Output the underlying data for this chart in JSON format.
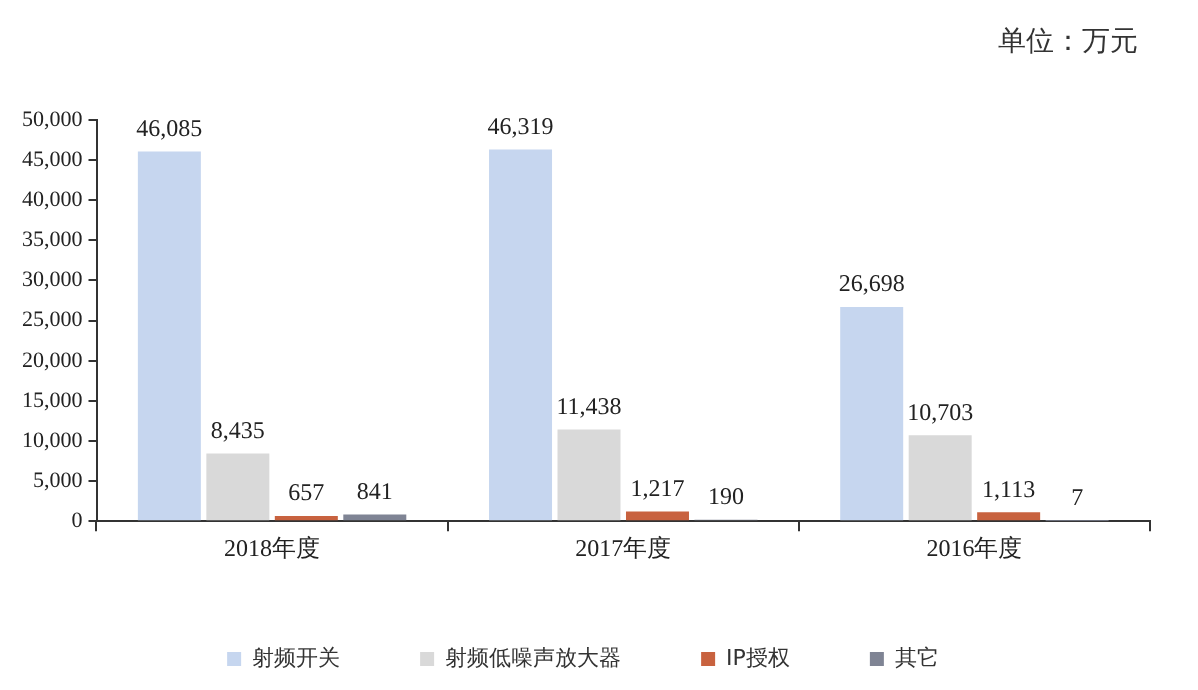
{
  "chart_data": {
    "type": "bar",
    "categories": [
      "2018年度",
      "2017年度",
      "2016年度"
    ],
    "series": [
      {
        "name": "射频开关",
        "color": "#c6d6ef",
        "values": [
          46085,
          46319,
          26698
        ],
        "value_labels": [
          "46,085",
          "46,319",
          "26,698"
        ]
      },
      {
        "name": "射频低噪声放大器",
        "color": "#d9d9d9",
        "values": [
          8435,
          11438,
          10703
        ],
        "value_labels": [
          "8,435",
          "11,438",
          "10,703"
        ]
      },
      {
        "name": "IP授权",
        "color": "#c8623f",
        "values": [
          657,
          1217,
          1113
        ],
        "value_labels": [
          "657",
          "1,217",
          "1,113"
        ]
      },
      {
        "name": "其它",
        "color": "#7f8494",
        "values": [
          841,
          190,
          7
        ],
        "value_labels": [
          "841",
          "190",
          "7"
        ]
      }
    ],
    "ylim": [
      0,
      50000
    ],
    "yticks": [
      {
        "value": 0,
        "label": "0"
      },
      {
        "value": 5000,
        "label": "5,000"
      },
      {
        "value": 10000,
        "label": "10,000"
      },
      {
        "value": 15000,
        "label": "15,000"
      },
      {
        "value": 20000,
        "label": "20,000"
      },
      {
        "value": 25000,
        "label": "25,000"
      },
      {
        "value": 30000,
        "label": "30,000"
      },
      {
        "value": 35000,
        "label": "35,000"
      },
      {
        "value": 40000,
        "label": "40,000"
      },
      {
        "value": 45000,
        "label": "45,000"
      },
      {
        "value": 50000,
        "label": "50,000"
      }
    ],
    "grid": false,
    "legend": "bottom",
    "annotations": [
      "单位：万元"
    ]
  }
}
